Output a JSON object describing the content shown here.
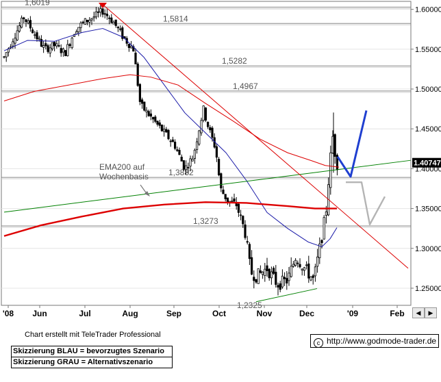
{
  "chart_data": {
    "type": "candlestick",
    "x_tick_labels": [
      "'08",
      "Jun",
      "Jul",
      "Aug",
      "Sep",
      "Oct",
      "Nov",
      "Dec",
      "'09",
      "Feb"
    ],
    "y_tick_labels": [
      "1.60000",
      "1.55000",
      "1.50000",
      "1.45000",
      "1.40000",
      "1.35000",
      "1.30000",
      "1.25000"
    ],
    "ylim": [
      1.2285,
      1.61
    ],
    "last_price_label": "1.40747",
    "last_price": 1.40747,
    "grid": "horizontal",
    "price_levels": [
      {
        "label": "1,6019",
        "value": 1.6019
      },
      {
        "label": "1,5814",
        "value": 1.5814
      },
      {
        "label": "1,5282",
        "value": 1.5282
      },
      {
        "label": "1,4967",
        "value": 1.4967
      },
      {
        "label": "1,3882",
        "value": 1.3882
      },
      {
        "label": "1,3273",
        "value": 1.3273
      },
      {
        "label": "1,2325",
        "value": 1.2325
      }
    ],
    "annotation": {
      "line1": "EMA200 auf",
      "line2": "Wochenbasis"
    },
    "colors": {
      "bull": "#ffffff",
      "bear": "#000000",
      "ema200_weekly": "#dd0000",
      "ema_red_thin": "#dd0000",
      "ema_blue": "#1a1aa8",
      "trend_green": "#008000",
      "trend_red": "#dd0000",
      "scenario_blue": "#1f3fd0",
      "scenario_grey": "#b4b4b4",
      "level_line": "#888888",
      "top_marker": "#dd0000"
    }
  },
  "footer": {
    "credit": "Chart erstellt mit TeleTrader Professional",
    "legend_blue": "Skizzierung BLAU = bevorzugtes Szenario",
    "legend_grey": "Skizzierung GRAU = Alternativszenario",
    "source": "http://www.godmode-trader.de",
    "source_icon": "copyright-icon"
  },
  "controls": {
    "left_arrow": "◀",
    "right_arrow": "▶"
  }
}
